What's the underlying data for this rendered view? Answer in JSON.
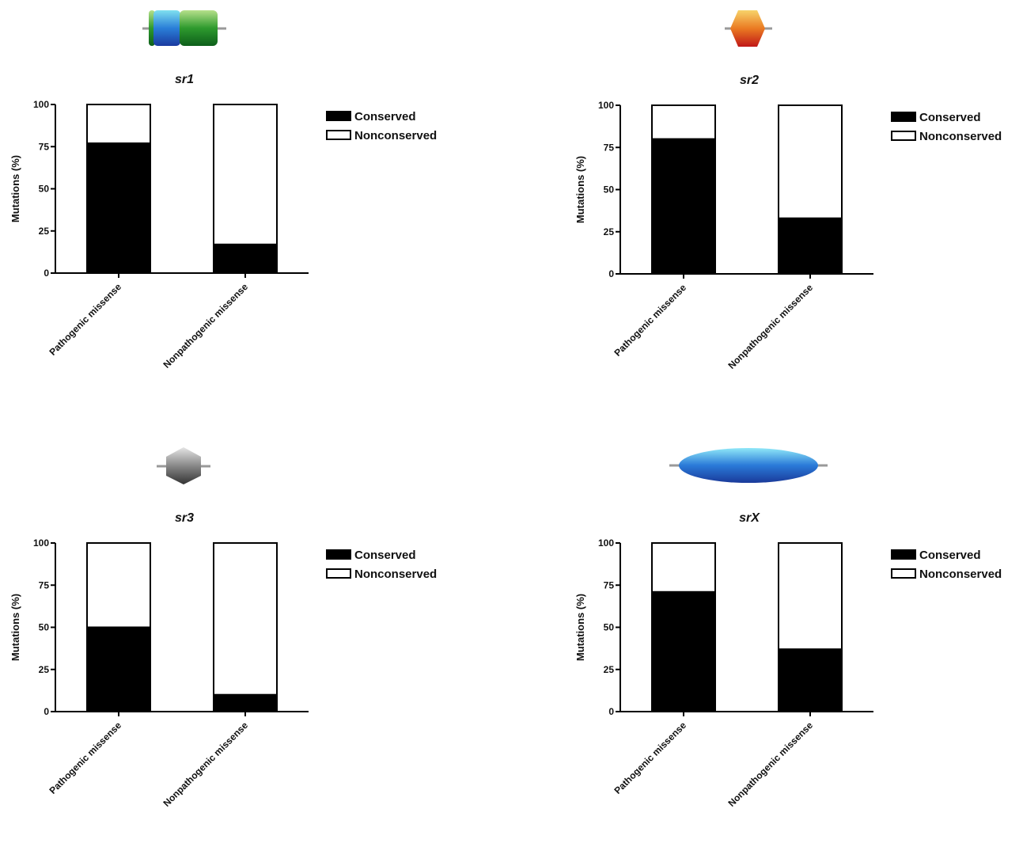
{
  "chart_data": [
    {
      "type": "bar",
      "stacked": true,
      "title": "sr1",
      "y_label": "Mutations (%)",
      "categories": [
        "Pathogenic missense",
        "Nonpathogenic missense"
      ],
      "series": [
        {
          "name": "Conserved",
          "color": "#000000",
          "values": [
            77,
            17
          ]
        },
        {
          "name": "Nonconserved",
          "color": "#ffffff",
          "values": [
            23,
            83
          ]
        }
      ],
      "ylim": [
        0,
        100
      ],
      "yticks": [
        0,
        25,
        50,
        75,
        100
      ]
    },
    {
      "type": "bar",
      "stacked": true,
      "title": "sr2",
      "y_label": "Mutations (%)",
      "categories": [
        "Pathogenic missense",
        "Nonpathogenic missense"
      ],
      "series": [
        {
          "name": "Conserved",
          "color": "#000000",
          "values": [
            80,
            33
          ]
        },
        {
          "name": "Nonconserved",
          "color": "#ffffff",
          "values": [
            20,
            67
          ]
        }
      ],
      "ylim": [
        0,
        100
      ],
      "yticks": [
        0,
        25,
        50,
        75,
        100
      ]
    },
    {
      "type": "bar",
      "stacked": true,
      "title": "sr3",
      "y_label": "Mutations (%)",
      "categories": [
        "Pathogenic missense",
        "Nonpathogenic missense"
      ],
      "series": [
        {
          "name": "Conserved",
          "color": "#000000",
          "values": [
            50,
            10
          ]
        },
        {
          "name": "Nonconserved",
          "color": "#ffffff",
          "values": [
            50,
            90
          ]
        }
      ],
      "ylim": [
        0,
        100
      ],
      "yticks": [
        0,
        25,
        50,
        75,
        100
      ]
    },
    {
      "type": "bar",
      "stacked": true,
      "title": "srX",
      "y_label": "Mutations (%)",
      "categories": [
        "Pathogenic missense",
        "Nonpathogenic missense"
      ],
      "series": [
        {
          "name": "Conserved",
          "color": "#000000",
          "values": [
            71,
            37
          ]
        },
        {
          "name": "Nonconserved",
          "color": "#ffffff",
          "values": [
            29,
            63
          ]
        }
      ],
      "ylim": [
        0,
        100
      ],
      "yticks": [
        0,
        25,
        50,
        75,
        100
      ]
    }
  ]
}
